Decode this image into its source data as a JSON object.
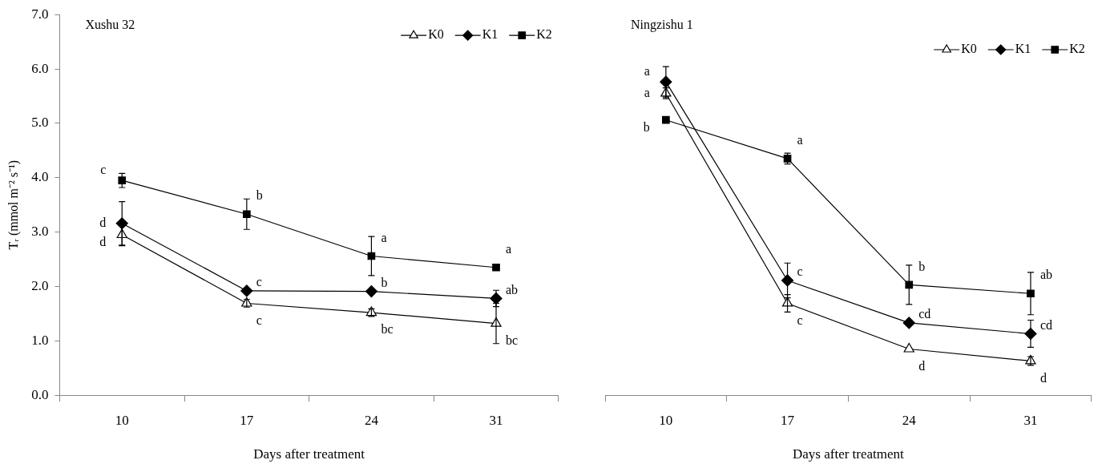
{
  "chart_data": [
    {
      "type": "line",
      "title": "Xushu 32",
      "xlabel": "Days after treatment",
      "ylabel": "Tᵣ (mmol m⁻² s⁻¹)",
      "categories": [
        "10",
        "17",
        "24",
        "31"
      ],
      "legend": "top right",
      "ylim": [
        0,
        7
      ],
      "yticks": [
        {
          "value": 0,
          "label": "0.0"
        },
        {
          "value": 1,
          "label": "1.0"
        },
        {
          "value": 2,
          "label": "2.0"
        },
        {
          "value": 3,
          "label": "3.0"
        },
        {
          "value": 4,
          "label": "4.0"
        },
        {
          "value": 5,
          "label": "5.0"
        },
        {
          "value": 6,
          "label": "6.0"
        },
        {
          "value": 7,
          "label": "7.0"
        }
      ],
      "series": [
        {
          "name": "K0",
          "color": "#000000",
          "marker": "triangle",
          "values": [
            2.95,
            1.69,
            1.52,
            1.32
          ],
          "errors": [
            0.2,
            0.07,
            0.07,
            0.37
          ]
        },
        {
          "name": "K1",
          "color": "#000000",
          "marker": "diamond",
          "values": [
            3.16,
            1.92,
            1.91,
            1.78
          ],
          "errors": [
            0.4,
            null,
            null,
            0.15
          ]
        },
        {
          "name": "K2",
          "color": "#000000",
          "marker": "square",
          "values": [
            3.95,
            3.33,
            2.56,
            2.35
          ],
          "errors": [
            0.13,
            0.28,
            0.36,
            null
          ]
        }
      ],
      "annotations": [
        {
          "text": "c",
          "x": "10",
          "y": 3.95
        },
        {
          "text": "d",
          "x": "10",
          "y": 3.16
        },
        {
          "text": "d",
          "x": "10",
          "y": 2.95
        },
        {
          "text": "b",
          "x": "17",
          "y": 3.33
        },
        {
          "text": "c",
          "x": "17",
          "y": 1.92
        },
        {
          "text": "c",
          "x": "17",
          "y": 1.69
        },
        {
          "text": "a",
          "x": "24",
          "y": 2.56
        },
        {
          "text": "b",
          "x": "24",
          "y": 1.91
        },
        {
          "text": "bc",
          "x": "24",
          "y": 1.52
        },
        {
          "text": "a",
          "x": "31",
          "y": 2.35
        },
        {
          "text": "ab",
          "x": "31",
          "y": 1.78
        },
        {
          "text": "bc",
          "x": "31",
          "y": 1.32
        }
      ]
    },
    {
      "type": "line",
      "title": "Ningzishu 1",
      "xlabel": "Days after treatment",
      "categories": [
        "10",
        "17",
        "24",
        "31"
      ],
      "legend": "top right",
      "ylim": [
        0,
        7
      ],
      "tick_labels": "x",
      "series": [
        {
          "name": "K0",
          "color": "#000000",
          "marker": "triangle",
          "values": [
            5.55,
            1.69,
            0.85,
            0.63
          ],
          "errors": [
            0.1,
            0.16,
            null,
            0.08
          ]
        },
        {
          "name": "K1",
          "color": "#000000",
          "marker": "diamond",
          "values": [
            5.76,
            2.11,
            1.33,
            1.13
          ],
          "errors": [
            0.28,
            0.32,
            null,
            0.25
          ]
        },
        {
          "name": "K2",
          "color": "#000000",
          "marker": "square",
          "values": [
            5.06,
            4.35,
            2.03,
            1.87
          ],
          "errors": [
            null,
            0.1,
            0.36,
            0.39
          ]
        }
      ],
      "annotations": [
        {
          "text": "a",
          "x": "10",
          "y": 5.76
        },
        {
          "text": "a",
          "x": "10",
          "y": 5.55
        },
        {
          "text": "b",
          "x": "10",
          "y": 5.06
        },
        {
          "text": "a",
          "x": "17",
          "y": 4.35
        },
        {
          "text": "c",
          "x": "17",
          "y": 2.11
        },
        {
          "text": "c",
          "x": "17",
          "y": 1.69
        },
        {
          "text": "b",
          "x": "24",
          "y": 2.03
        },
        {
          "text": "cd",
          "x": "24",
          "y": 1.33
        },
        {
          "text": "d",
          "x": "24",
          "y": 0.85
        },
        {
          "text": "ab",
          "x": "31",
          "y": 1.87
        },
        {
          "text": "cd",
          "x": "31",
          "y": 1.13
        },
        {
          "text": "d",
          "x": "31",
          "y": 0.63
        }
      ]
    }
  ]
}
